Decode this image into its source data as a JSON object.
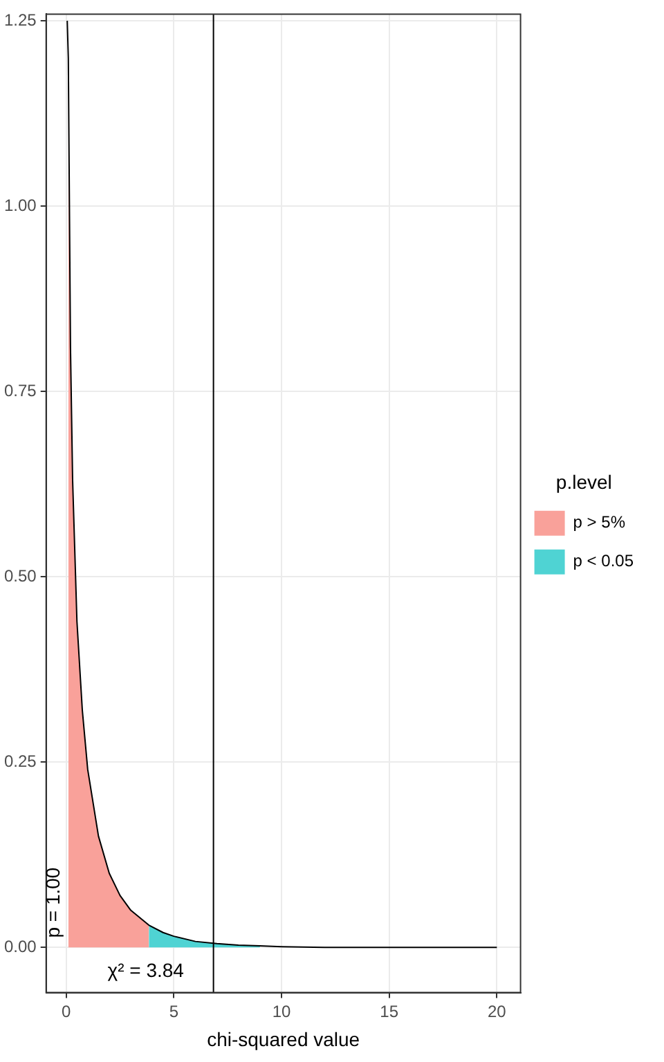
{
  "chart_data": {
    "type": "area",
    "xlabel": "chi-squared value",
    "legend_title": "p.level",
    "xlim": [
      -0.93,
      21.1
    ],
    "ylim": [
      -0.061,
      1.259
    ],
    "xticks": [
      0,
      5,
      10,
      15,
      20
    ],
    "yticks": [
      {
        "value": 0,
        "label": "0.00"
      },
      {
        "value": 0.25,
        "label": "0.25"
      },
      {
        "value": 0.5,
        "label": "0.50"
      },
      {
        "value": 0.75,
        "label": "0.75"
      },
      {
        "value": 1,
        "label": "1.00"
      },
      {
        "value": 1.25,
        "label": "1.25"
      }
    ],
    "grid": true,
    "legend": "right",
    "marker": "none",
    "series": [
      {
        "name": "p > 5%",
        "color": "#f9a19a",
        "x": [
          0.1,
          0.2,
          0.3,
          0.5,
          0.75,
          1,
          1.5,
          2,
          2.5,
          3,
          3.84
        ],
        "values": [
          1.2,
          0.81,
          0.63,
          0.44,
          0.32,
          0.24,
          0.15,
          0.1,
          0.07,
          0.05,
          0.03
        ]
      },
      {
        "name": "p < 0.05",
        "color": "#4fd3d3",
        "x": [
          3.84,
          4.5,
          5,
          6,
          7,
          8,
          9
        ],
        "values": [
          0.03,
          0.02,
          0.015,
          0.008,
          0.005,
          0.003,
          0.002
        ]
      },
      {
        "type": "line",
        "color": "#000000",
        "x": [
          0.05,
          0.1,
          0.2,
          0.3,
          0.5,
          0.75,
          1,
          1.5,
          2,
          2.5,
          3,
          3.84,
          4.5,
          5,
          6,
          7,
          8,
          9,
          10,
          12,
          15,
          20
        ],
        "values": [
          1.25,
          1.2,
          0.81,
          0.63,
          0.44,
          0.32,
          0.24,
          0.15,
          0.1,
          0.07,
          0.05,
          0.03,
          0.02,
          0.015,
          0.008,
          0.005,
          0.003,
          0.002,
          0.001,
          0,
          0,
          0
        ]
      }
    ],
    "ref_lines": [
      {
        "axis": "x",
        "value": 6.84,
        "color": "#000000"
      }
    ],
    "annotations": [
      "p = 1.00",
      "χ² = 3.84"
    ]
  }
}
